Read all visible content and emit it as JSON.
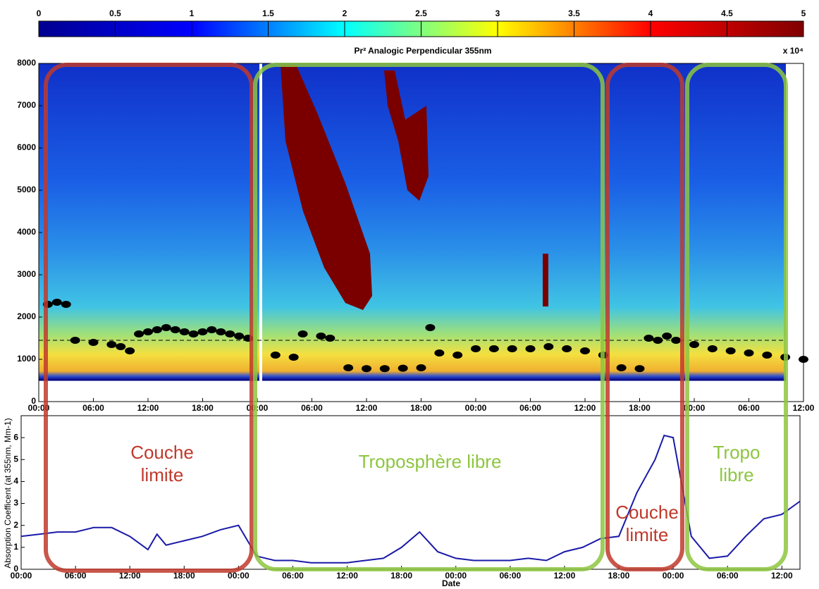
{
  "chart_data": [
    {
      "type": "colorbar",
      "title": "Pr² Analogic Perpendicular 355nm",
      "unit_label": "x 10⁴",
      "xlim": [
        0,
        5
      ],
      "xticks": [
        0,
        0.5,
        1,
        1.5,
        2,
        2.5,
        3,
        3.5,
        4,
        4.5,
        5
      ],
      "colors": [
        "#00008f",
        "#0000ff",
        "#00ffff",
        "#ffff00",
        "#ff0000",
        "#800000"
      ]
    },
    {
      "type": "scatter",
      "color": "#000000",
      "xlim": [
        0,
        84
      ],
      "ylim": [
        0,
        8000
      ],
      "yticks": [
        0,
        1000,
        2000,
        3000,
        4000,
        5000,
        6000,
        7000,
        8000
      ],
      "xticks": [
        {
          "value": 0,
          "label": "00:00"
        },
        {
          "value": 6,
          "label": "06:00"
        },
        {
          "value": 12,
          "label": "12:00"
        },
        {
          "value": 18,
          "label": "18:00"
        },
        {
          "value": 24,
          "label": "00:00"
        },
        {
          "value": 30,
          "label": "06:00"
        },
        {
          "value": 36,
          "label": "12:00"
        },
        {
          "value": 42,
          "label": "18:00"
        },
        {
          "value": 48,
          "label": "00:00"
        },
        {
          "value": 54,
          "label": "06:00"
        },
        {
          "value": 60,
          "label": "12:00"
        },
        {
          "value": 66,
          "label": "18:00"
        },
        {
          "value": 72,
          "label": "00:00"
        },
        {
          "value": 78,
          "label": "06:00"
        },
        {
          "value": 84,
          "label": "12:00"
        }
      ],
      "x": [
        1,
        2,
        3,
        4,
        6,
        8,
        9,
        10,
        11,
        12,
        13,
        14,
        15,
        16,
        17,
        18,
        19,
        20,
        21,
        22,
        23,
        26,
        28,
        29,
        31,
        32,
        34,
        36,
        38,
        40,
        42,
        43,
        44,
        46,
        48,
        50,
        52,
        54,
        56,
        58,
        60,
        62,
        64,
        66,
        67,
        68,
        69,
        70,
        72,
        74,
        76,
        78,
        80,
        82,
        84
      ],
      "values": [
        2300,
        2350,
        2300,
        1450,
        1400,
        1350,
        1300,
        1200,
        1600,
        1650,
        1700,
        1750,
        1700,
        1650,
        1600,
        1650,
        1700,
        1650,
        1600,
        1550,
        1500,
        1100,
        1050,
        1600,
        1550,
        1500,
        800,
        780,
        780,
        790,
        800,
        1750,
        1150,
        1100,
        1250,
        1250,
        1250,
        1250,
        1300,
        1250,
        1200,
        1100,
        800,
        780,
        1500,
        1450,
        1550,
        1450,
        1350,
        1250,
        1200,
        1150,
        1100,
        1050,
        1000
      ],
      "hline": 1450
    },
    {
      "type": "line",
      "color": "#1a1aa8",
      "ylabel": "Absorption Coefficent (at 355nm, Mm-1)",
      "xlabel": "Date",
      "xlim": [
        0,
        86
      ],
      "ylim": [
        0,
        7
      ],
      "yticks": [
        0,
        1,
        2,
        3,
        4,
        5,
        6
      ],
      "xticks": [
        {
          "value": 0,
          "label": "00:00"
        },
        {
          "value": 6,
          "label": "06:00"
        },
        {
          "value": 12,
          "label": "12:00"
        },
        {
          "value": 18,
          "label": "18:00"
        },
        {
          "value": 24,
          "label": "00:00"
        },
        {
          "value": 30,
          "label": "06:00"
        },
        {
          "value": 36,
          "label": "12:00"
        },
        {
          "value": 42,
          "label": "18:00"
        },
        {
          "value": 48,
          "label": "00:00"
        },
        {
          "value": 54,
          "label": "06:00"
        },
        {
          "value": 60,
          "label": "12:00"
        },
        {
          "value": 66,
          "label": "18:00"
        },
        {
          "value": 72,
          "label": "00:00"
        },
        {
          "value": 78,
          "label": "06:00"
        },
        {
          "value": 84,
          "label": "12:00"
        }
      ],
      "x": [
        0,
        2,
        4,
        6,
        8,
        10,
        12,
        14,
        15,
        16,
        18,
        20,
        22,
        24,
        26,
        28,
        30,
        32,
        34,
        36,
        38,
        40,
        42,
        44,
        46,
        48,
        50,
        52,
        54,
        56,
        58,
        60,
        62,
        64,
        66,
        68,
        70,
        71,
        72,
        74,
        76,
        78,
        80,
        82,
        84,
        86
      ],
      "values": [
        1.5,
        1.6,
        1.7,
        1.7,
        1.9,
        1.9,
        1.5,
        0.9,
        1.6,
        1.1,
        1.3,
        1.5,
        1.8,
        2.0,
        0.6,
        0.4,
        0.4,
        0.3,
        0.3,
        0.3,
        0.4,
        0.5,
        1.0,
        1.7,
        0.8,
        0.5,
        0.4,
        0.4,
        0.4,
        0.5,
        0.4,
        0.8,
        1.0,
        1.4,
        1.5,
        3.5,
        5.0,
        6.1,
        6.0,
        1.5,
        0.5,
        0.6,
        1.5,
        2.3,
        2.5,
        3.1
      ]
    }
  ],
  "annotations": [
    {
      "lines": [
        "Couche",
        "limite"
      ],
      "color": "#c0392b"
    },
    {
      "lines": [
        "Troposphère libre"
      ],
      "color": "#8dc63f"
    },
    {
      "lines": [
        "Couche",
        "limite"
      ],
      "color": "#c0392b"
    },
    {
      "lines": [
        "Tropo",
        "libre"
      ],
      "color": "#8dc63f"
    }
  ]
}
